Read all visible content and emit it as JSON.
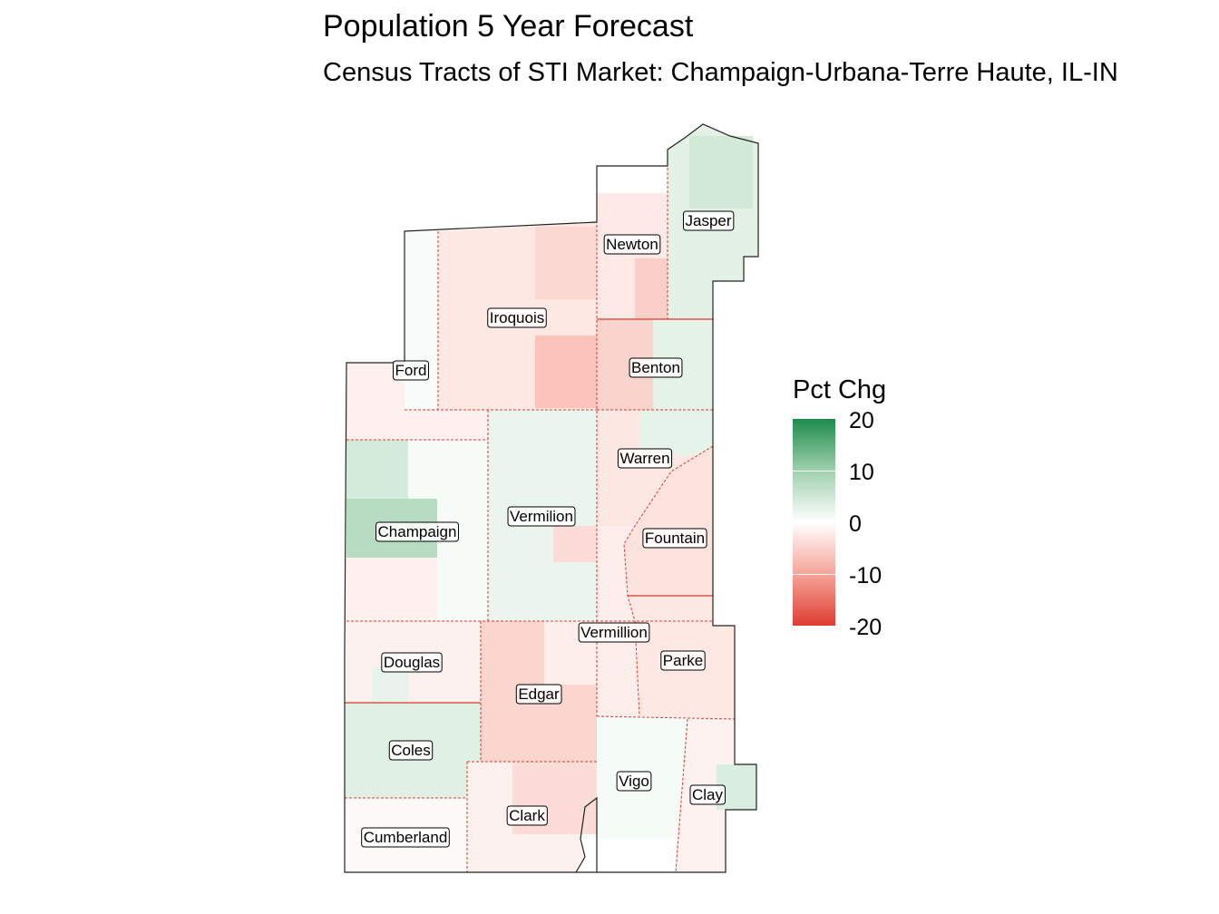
{
  "title": "Population 5 Year Forecast",
  "subtitle": "Census Tracts of STI Market: Champaign-Urbana-Terre Haute, IL-IN",
  "legend": {
    "title": "Pct Chg",
    "ticks": [
      "20",
      "10",
      "0",
      "-10",
      "-20"
    ],
    "colors": {
      "high": "#1e8b4c",
      "mid": "#ffffff",
      "low": "#e03c31"
    }
  },
  "counties": [
    {
      "name": "Jasper",
      "pct_chg": 4
    },
    {
      "name": "Newton",
      "pct_chg": -5
    },
    {
      "name": "Iroquois",
      "pct_chg": -5
    },
    {
      "name": "Ford",
      "pct_chg": -3
    },
    {
      "name": "Benton",
      "pct_chg": -8
    },
    {
      "name": "Warren",
      "pct_chg": -3
    },
    {
      "name": "Vermilion",
      "pct_chg": 3
    },
    {
      "name": "Champaign",
      "pct_chg": 6
    },
    {
      "name": "Fountain",
      "pct_chg": -4
    },
    {
      "name": "Vermillion",
      "pct_chg": -3
    },
    {
      "name": "Parke",
      "pct_chg": -3
    },
    {
      "name": "Douglas",
      "pct_chg": -2
    },
    {
      "name": "Edgar",
      "pct_chg": -6
    },
    {
      "name": "Coles",
      "pct_chg": 4
    },
    {
      "name": "Vigo",
      "pct_chg": 1
    },
    {
      "name": "Clay",
      "pct_chg": 3
    },
    {
      "name": "Clark",
      "pct_chg": -3
    },
    {
      "name": "Cumberland",
      "pct_chg": -1
    }
  ]
}
